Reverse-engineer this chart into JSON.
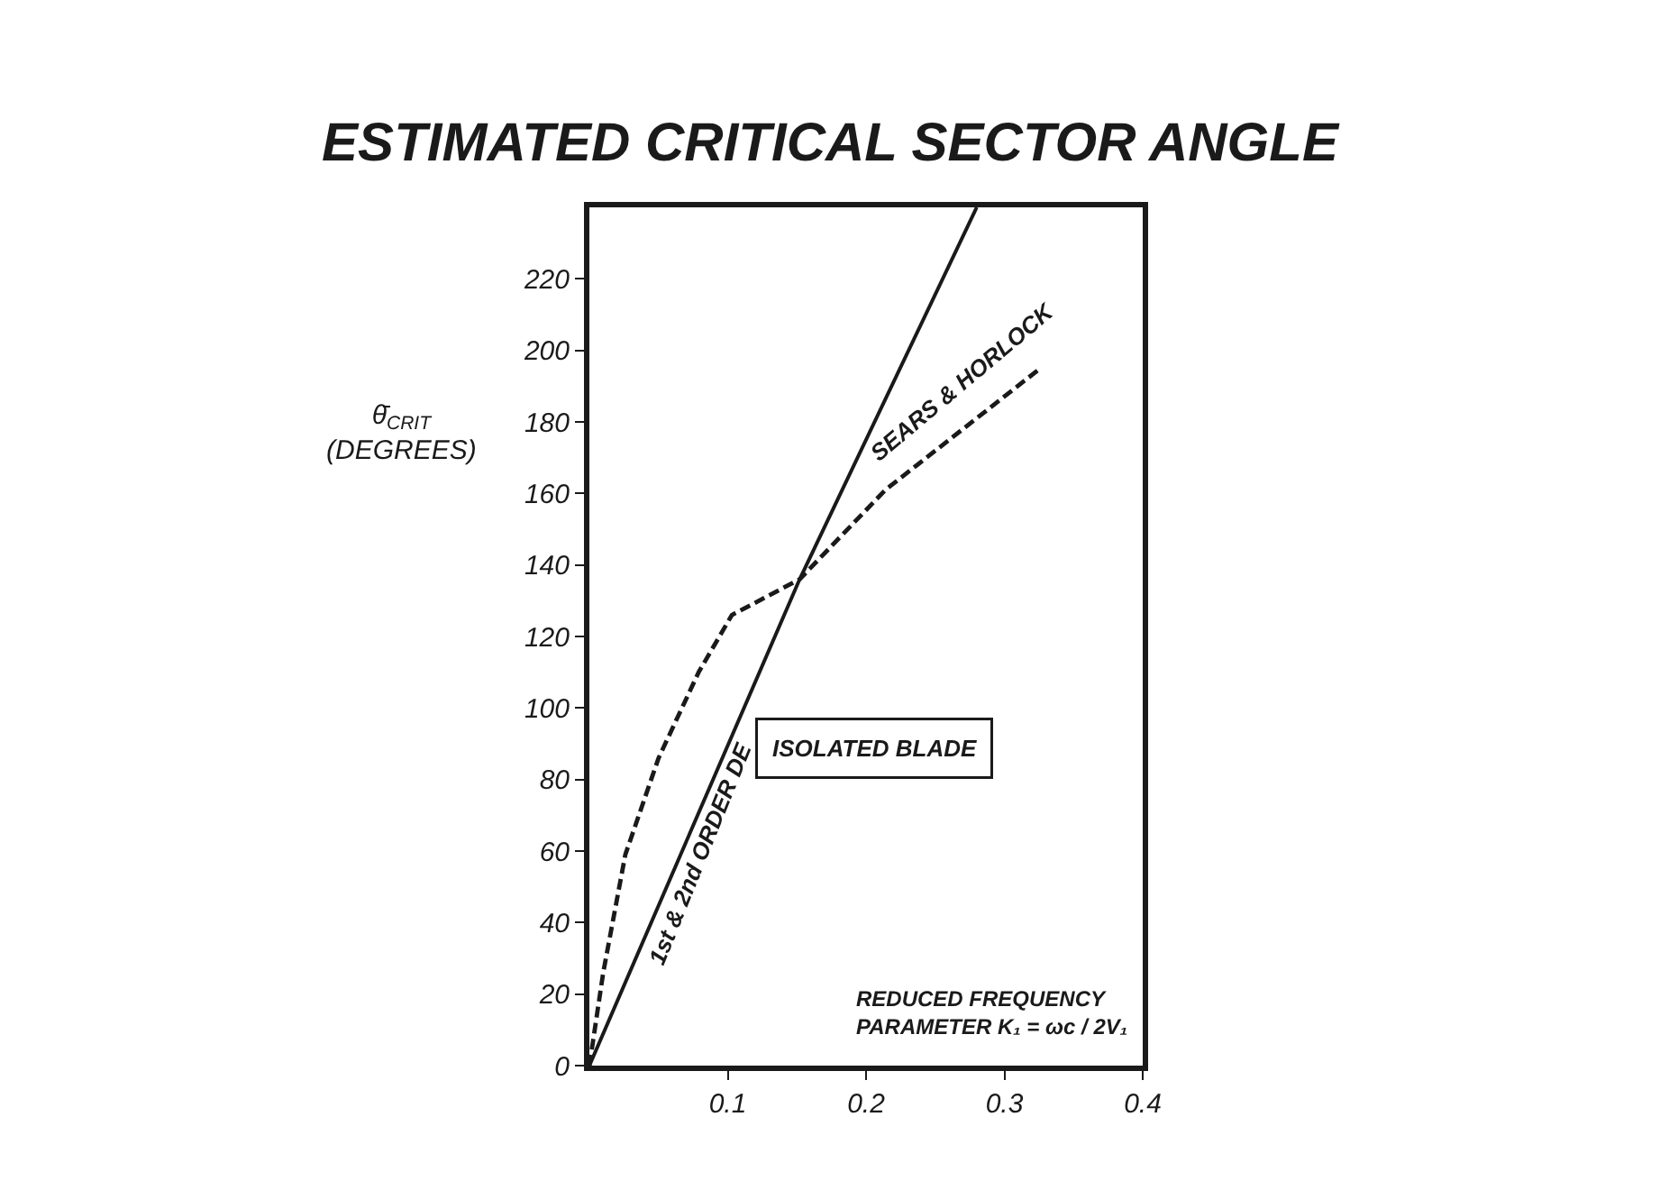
{
  "chart_data": {
    "type": "line",
    "title": "ESTIMATED CRITICAL SECTOR ANGLE",
    "xlabel": "REDUCED FREQUENCY PARAMETER K₁ = ωc / 2V₁",
    "ylabel": "θ̄$_{CRIT}$ (DEGREES)",
    "annotations": [
      "ISOLATED BLADE"
    ],
    "series": [
      {
        "name": "1st & 2nd ORDER DE",
        "color": "#1a1a1a",
        "line_style": "solid",
        "x": [
          0,
          0.152,
          0.28
        ],
        "values": [
          0,
          136,
          240
        ]
      },
      {
        "name": "SEARS & HORLOCK",
        "color": "#1a1a1a",
        "line_style": "dashed",
        "x": [
          0,
          0.01,
          0.026,
          0.05,
          0.079,
          0.103,
          0.152,
          0.214,
          0.27,
          0.326
        ],
        "values": [
          0,
          26,
          59,
          86,
          110,
          126,
          136,
          161,
          178,
          195
        ]
      }
    ],
    "xlim": [
      0,
      0.4
    ],
    "xticks": [
      0.1,
      0.2,
      0.3,
      0.4
    ],
    "ylim": [
      0,
      240
    ],
    "yticks": [
      0,
      20,
      40,
      60,
      80,
      100,
      120,
      140,
      160,
      180,
      200,
      220
    ],
    "legend": false,
    "marker": "none"
  }
}
